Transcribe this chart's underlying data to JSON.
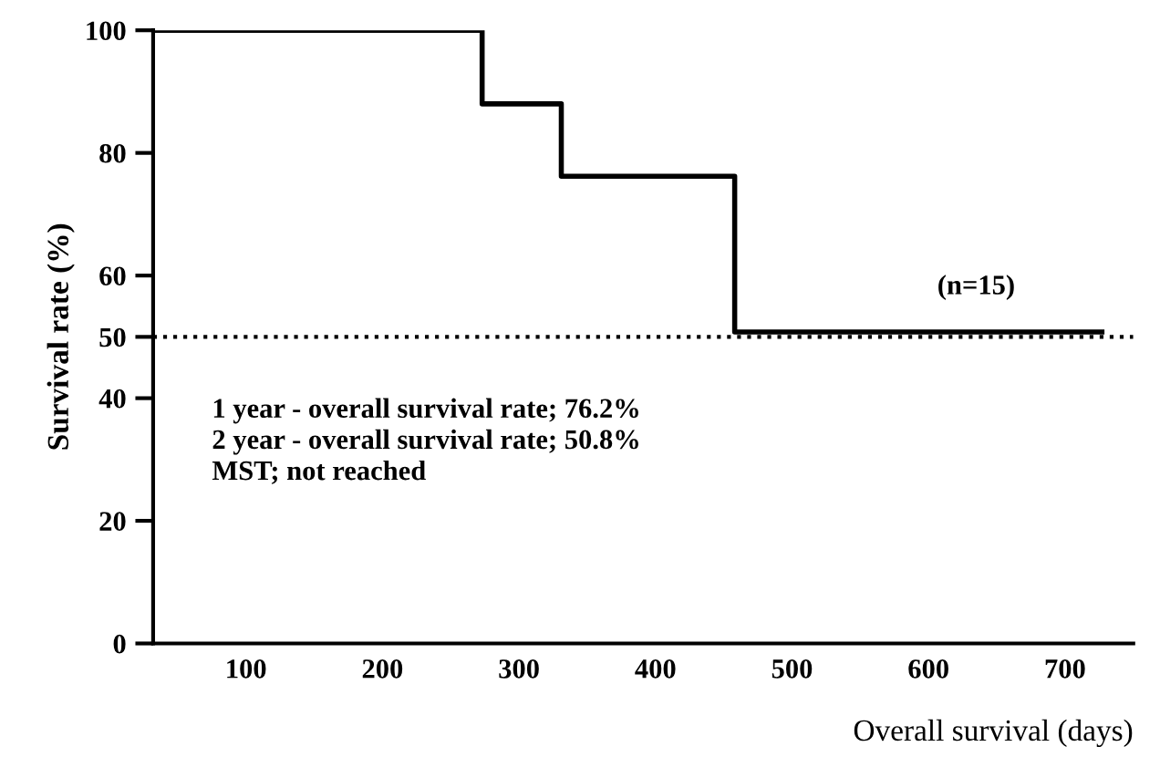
{
  "chart_data": {
    "type": "step",
    "xlabel": "Overall survival (days)",
    "ylabel": "Survival rate (%)",
    "x": [
      32,
      273,
      331,
      458,
      727
    ],
    "series": [
      {
        "color": "#000000",
        "values": [
          100,
          88,
          76.2,
          50.8,
          50.8
        ]
      }
    ],
    "xlim": [
      32,
      750
    ],
    "xticks": [
      100,
      200,
      300,
      400,
      500,
      600,
      700
    ],
    "ylim": [
      0,
      100
    ],
    "yticks": [
      0,
      20,
      40,
      50,
      60,
      80,
      100
    ],
    "ref_lines": [
      {
        "axis": "y",
        "value": 50,
        "line_style": "dotted",
        "color": "#000000"
      }
    ],
    "annotations": [
      "(n=15)",
      "1 year - overall survival rate; 76.2%\n2 year - overall survival rate; 50.8%\nMST; not reached"
    ],
    "grid": false,
    "legend": false
  }
}
